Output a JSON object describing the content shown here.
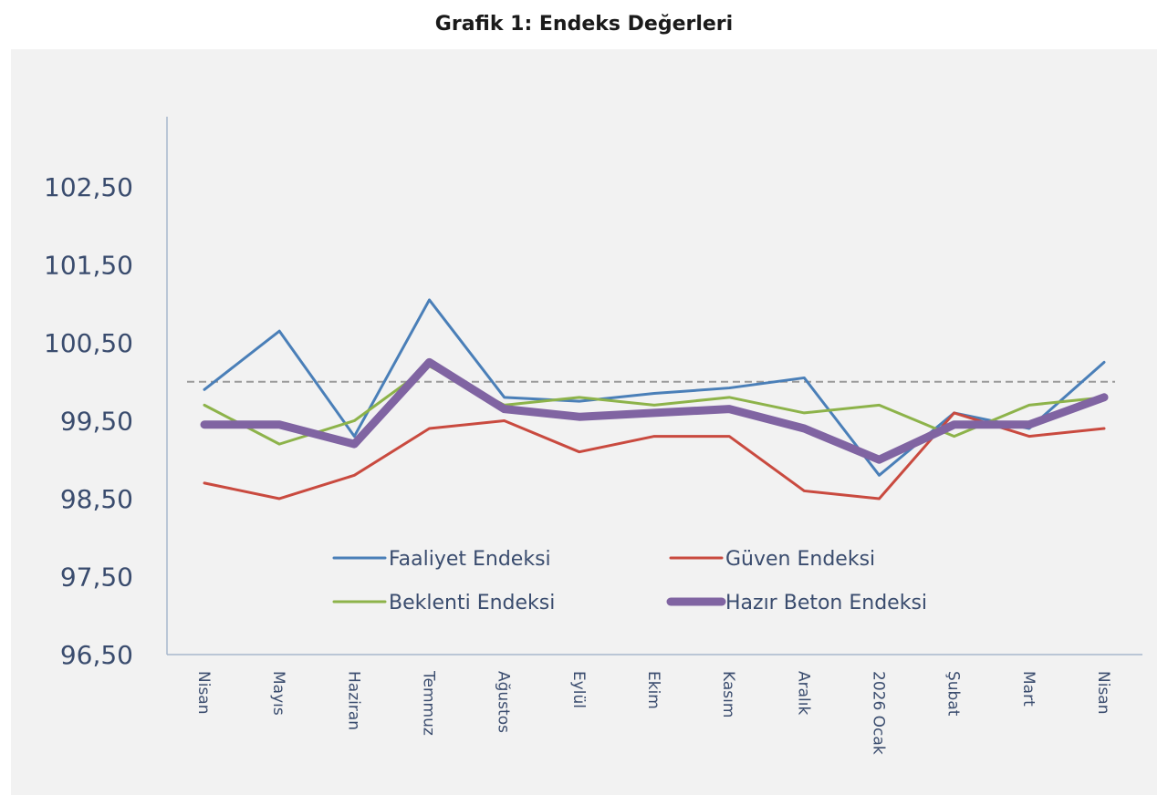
{
  "chart_data": {
    "type": "line",
    "title": "Grafik 1: Endeks Değerleri",
    "categories": [
      "Nisan",
      "Mayıs",
      "Haziran",
      "Temmuz",
      "Ağustos",
      "Eylül",
      "Ekim",
      "Kasım",
      "Aralık",
      "2026 Ocak",
      "Şubat",
      "Mart",
      "Nisan"
    ],
    "y_ticks": [
      "96,50",
      "97,50",
      "98,50",
      "99,50",
      "100,50",
      "101,50",
      "102,50"
    ],
    "ylim": [
      96.5,
      103.4
    ],
    "reference_line": 100,
    "grid": false,
    "legend_position": "bottom-center",
    "series": [
      {
        "name": "Faaliyet Endeksi",
        "color": "#4a7fb8",
        "width": 3,
        "values": [
          99.9,
          100.65,
          99.3,
          101.05,
          99.8,
          99.75,
          99.85,
          99.92,
          100.05,
          98.8,
          99.6,
          99.4,
          100.25
        ]
      },
      {
        "name": "Güven Endeksi",
        "color": "#c94a3f",
        "width": 3,
        "values": [
          98.7,
          98.5,
          98.8,
          99.4,
          99.5,
          99.1,
          99.3,
          99.3,
          98.6,
          98.5,
          99.6,
          99.3,
          99.4
        ]
      },
      {
        "name": "Beklenti Endeksi",
        "color": "#8db34a",
        "width": 3,
        "values": [
          99.7,
          99.2,
          99.5,
          100.2,
          99.7,
          99.8,
          99.7,
          99.8,
          99.6,
          99.7,
          99.3,
          99.7,
          99.8
        ]
      },
      {
        "name": "Hazır Beton Endeksi",
        "color": "#8064a2",
        "width": 9,
        "values": [
          99.45,
          99.45,
          99.2,
          100.25,
          99.65,
          99.55,
          99.6,
          99.65,
          99.4,
          99.0,
          99.45,
          99.45,
          99.8
        ]
      }
    ]
  }
}
